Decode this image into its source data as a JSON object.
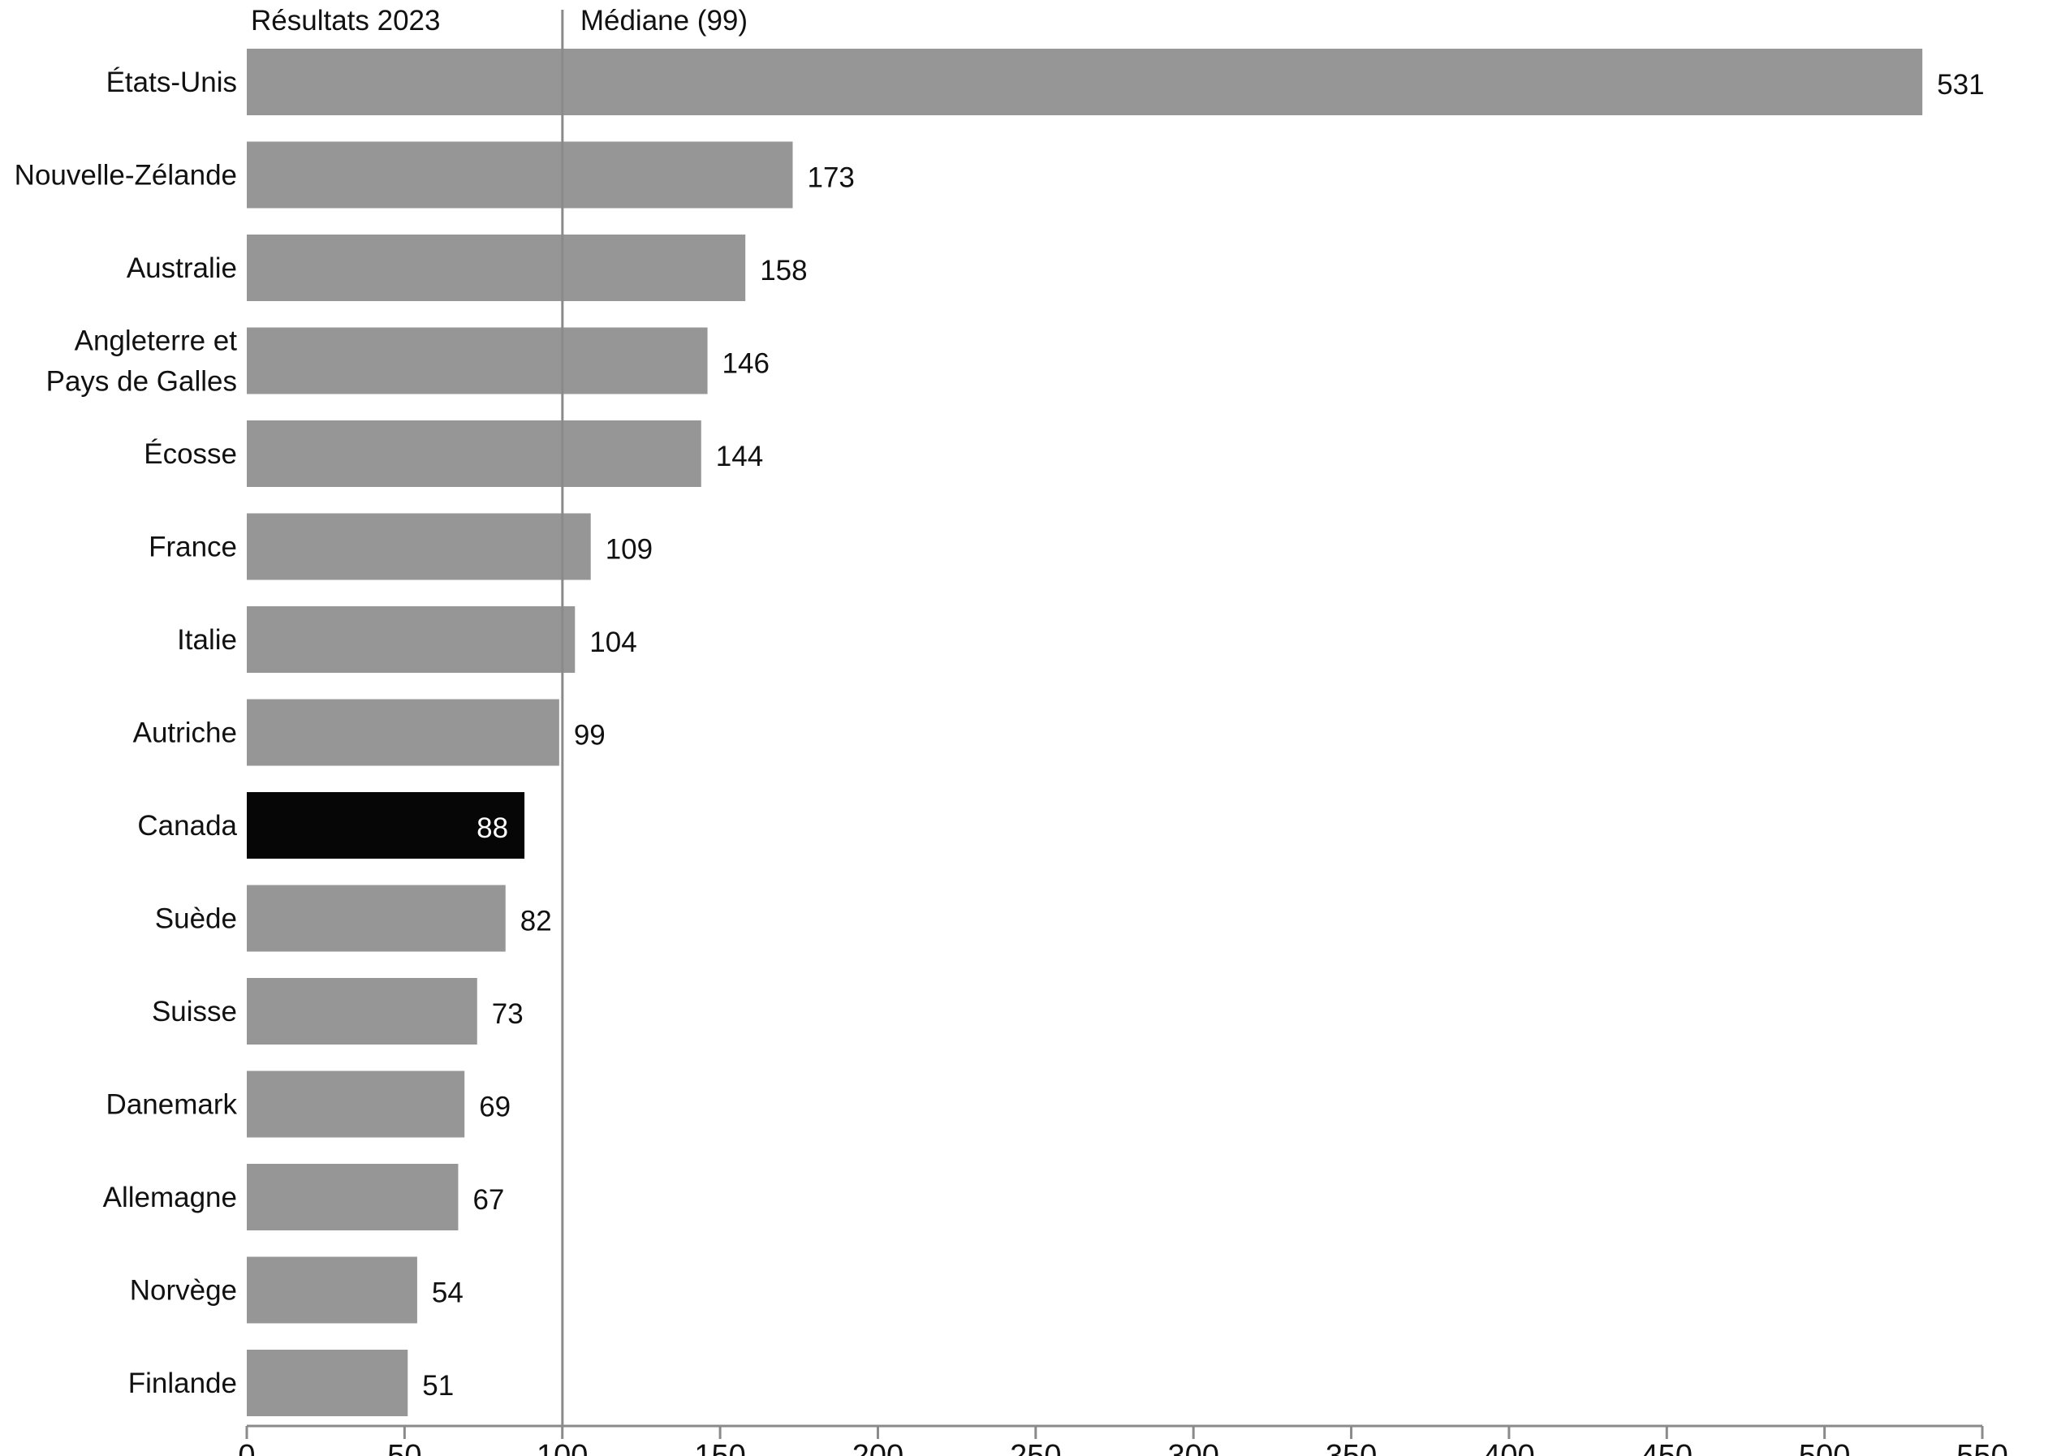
{
  "chart_data": {
    "type": "bar",
    "orientation": "horizontal",
    "title": "",
    "xlabel": "",
    "ylabel": "",
    "categories": [
      "États-Unis",
      "Nouvelle-Zélande",
      "Australie",
      "Angleterre et Pays de Galles",
      "Écosse",
      "France",
      "Italie",
      "Autriche",
      "Canada",
      "Suède",
      "Suisse",
      "Danemark",
      "Allemagne",
      "Norvège",
      "Finlande"
    ],
    "category_lines": [
      [
        "États-Unis"
      ],
      [
        "Nouvelle-Zélande"
      ],
      [
        "Australie"
      ],
      [
        "Angleterre et",
        "Pays de Galles"
      ],
      [
        "Écosse"
      ],
      [
        "France"
      ],
      [
        "Italie"
      ],
      [
        "Autriche"
      ],
      [
        "Canada"
      ],
      [
        "Suède"
      ],
      [
        "Suisse"
      ],
      [
        "Danemark"
      ],
      [
        "Allemagne"
      ],
      [
        "Norvège"
      ],
      [
        "Finlande"
      ]
    ],
    "values": [
      531,
      173,
      158,
      146,
      144,
      109,
      104,
      99,
      88,
      82,
      73,
      69,
      67,
      54,
      51
    ],
    "highlight_category": "Canada",
    "xlim": [
      0,
      550
    ],
    "xticks": [
      0,
      50,
      100,
      150,
      200,
      250,
      300,
      350,
      400,
      450,
      500,
      550
    ],
    "median": {
      "value": 99,
      "label": "Médiane (99)"
    },
    "results_label": "Résultats 2023",
    "grid": false,
    "legend": "none",
    "colors": {
      "bar": "#969696",
      "highlight": "#060606",
      "axis": "#8a8a8a",
      "median_line": "#8a8a8a",
      "highlight_text": "#ffffff"
    }
  }
}
